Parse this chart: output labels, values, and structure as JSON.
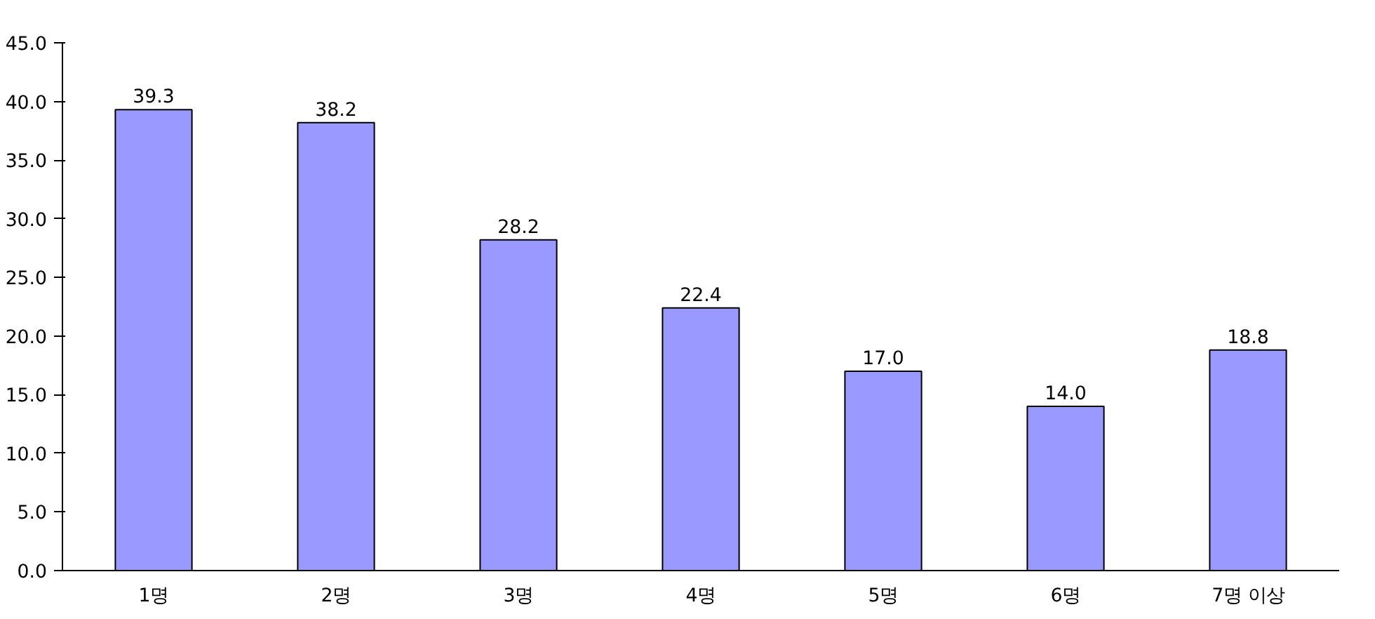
{
  "chart_data": {
    "type": "bar",
    "categories": [
      "1명",
      "2명",
      "3명",
      "4명",
      "5명",
      "6명",
      "7명 이상"
    ],
    "values": [
      39.3,
      38.2,
      28.2,
      22.4,
      17.0,
      14.0,
      18.8
    ],
    "value_labels": [
      "39.3",
      "38.2",
      "28.2",
      "22.4",
      "17.0",
      "14.0",
      "18.8"
    ],
    "color": "#9999ff",
    "ylim": [
      0,
      45
    ],
    "yticks": [
      {
        "value": 0,
        "label": "0.0"
      },
      {
        "value": 5,
        "label": "5.0"
      },
      {
        "value": 10,
        "label": "10.0"
      },
      {
        "value": 15,
        "label": "15.0"
      },
      {
        "value": 20,
        "label": "20.0"
      },
      {
        "value": 25,
        "label": "25.0"
      },
      {
        "value": 30,
        "label": "30.0"
      },
      {
        "value": 35,
        "label": "35.0"
      },
      {
        "value": 40,
        "label": "40.0"
      },
      {
        "value": 45,
        "label": "45.0"
      }
    ],
    "grid": false
  }
}
